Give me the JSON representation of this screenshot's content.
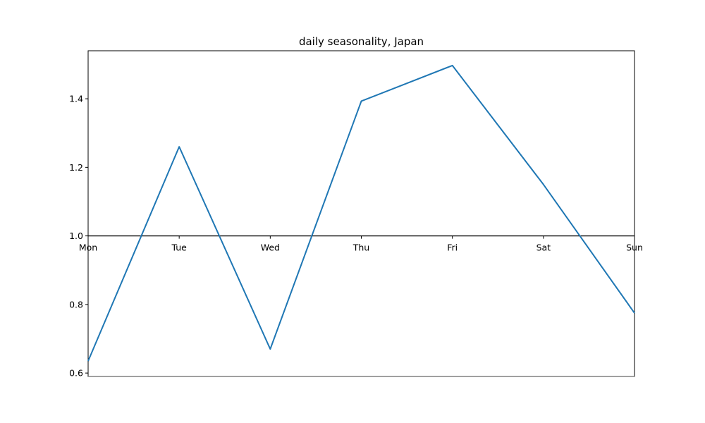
{
  "chart_data": {
    "type": "line",
    "title": "daily seasonality, Japan",
    "xlabel": "",
    "ylabel": "",
    "categories": [
      "Mon",
      "Tue",
      "Wed",
      "Thu",
      "Fri",
      "Sat",
      "Sun"
    ],
    "series": [
      {
        "values": [
          0.635,
          1.26,
          0.67,
          1.393,
          1.497,
          1.15,
          0.775
        ],
        "color": "#1f77b4"
      }
    ],
    "baseline": 1.0,
    "ylim": [
      0.59,
      1.54
    ],
    "yticks": [
      0.6,
      0.8,
      1.0,
      1.2,
      1.4
    ],
    "ytick_labels": [
      "0.6",
      "0.8",
      "1.0",
      "1.2",
      "1.4"
    ],
    "grid": false,
    "legend": "none"
  }
}
